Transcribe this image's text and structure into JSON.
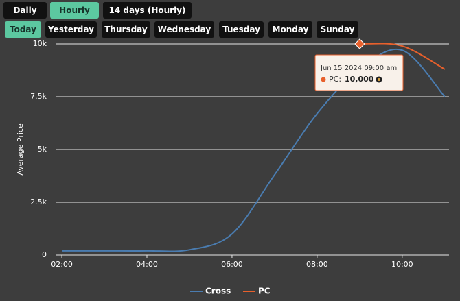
{
  "controls": {
    "ranges": [
      "Daily",
      "Hourly",
      "14 days (Hourly)"
    ],
    "active_range": 1,
    "days": [
      "Today",
      "Yesterday",
      "Thursday",
      "Wednesday",
      "Tuesday",
      "Monday",
      "Sunday"
    ],
    "active_day": 0
  },
  "chart_data": {
    "type": "line",
    "y_label": "Average Price",
    "x": [
      2,
      3,
      4,
      5,
      6,
      7,
      8,
      9,
      10,
      11
    ],
    "xlim": [
      1.87,
      11.1
    ],
    "xticks": [
      {
        "value": 2,
        "label": "02:00"
      },
      {
        "value": 4,
        "label": "04:00"
      },
      {
        "value": 6,
        "label": "06:00"
      },
      {
        "value": 8,
        "label": "08:00"
      },
      {
        "value": 10,
        "label": "10:00"
      }
    ],
    "ylim": [
      0,
      10000
    ],
    "yticks": [
      0,
      {
        "value": 2500,
        "label": "2.5k"
      },
      {
        "value": 5000,
        "label": "5k"
      },
      {
        "value": 7500,
        "label": "7.5k"
      },
      {
        "value": 10000,
        "label": "10k"
      }
    ],
    "grid": true,
    "series": [
      {
        "name": "Cross",
        "color": "#4a7cb0",
        "values": [
          200,
          200,
          200,
          250,
          1000,
          3800,
          6700,
          8800,
          9700,
          7500
        ]
      },
      {
        "name": "PC",
        "color": "#e8602c",
        "values": [
          null,
          null,
          null,
          null,
          null,
          null,
          null,
          10000,
          9900,
          8800
        ]
      }
    ],
    "tooltip": {
      "title": "Jun 15 2024 09:00 am",
      "label": "PC:",
      "value": 10000,
      "value_label": "10,000",
      "series": 1,
      "index": 7
    }
  }
}
